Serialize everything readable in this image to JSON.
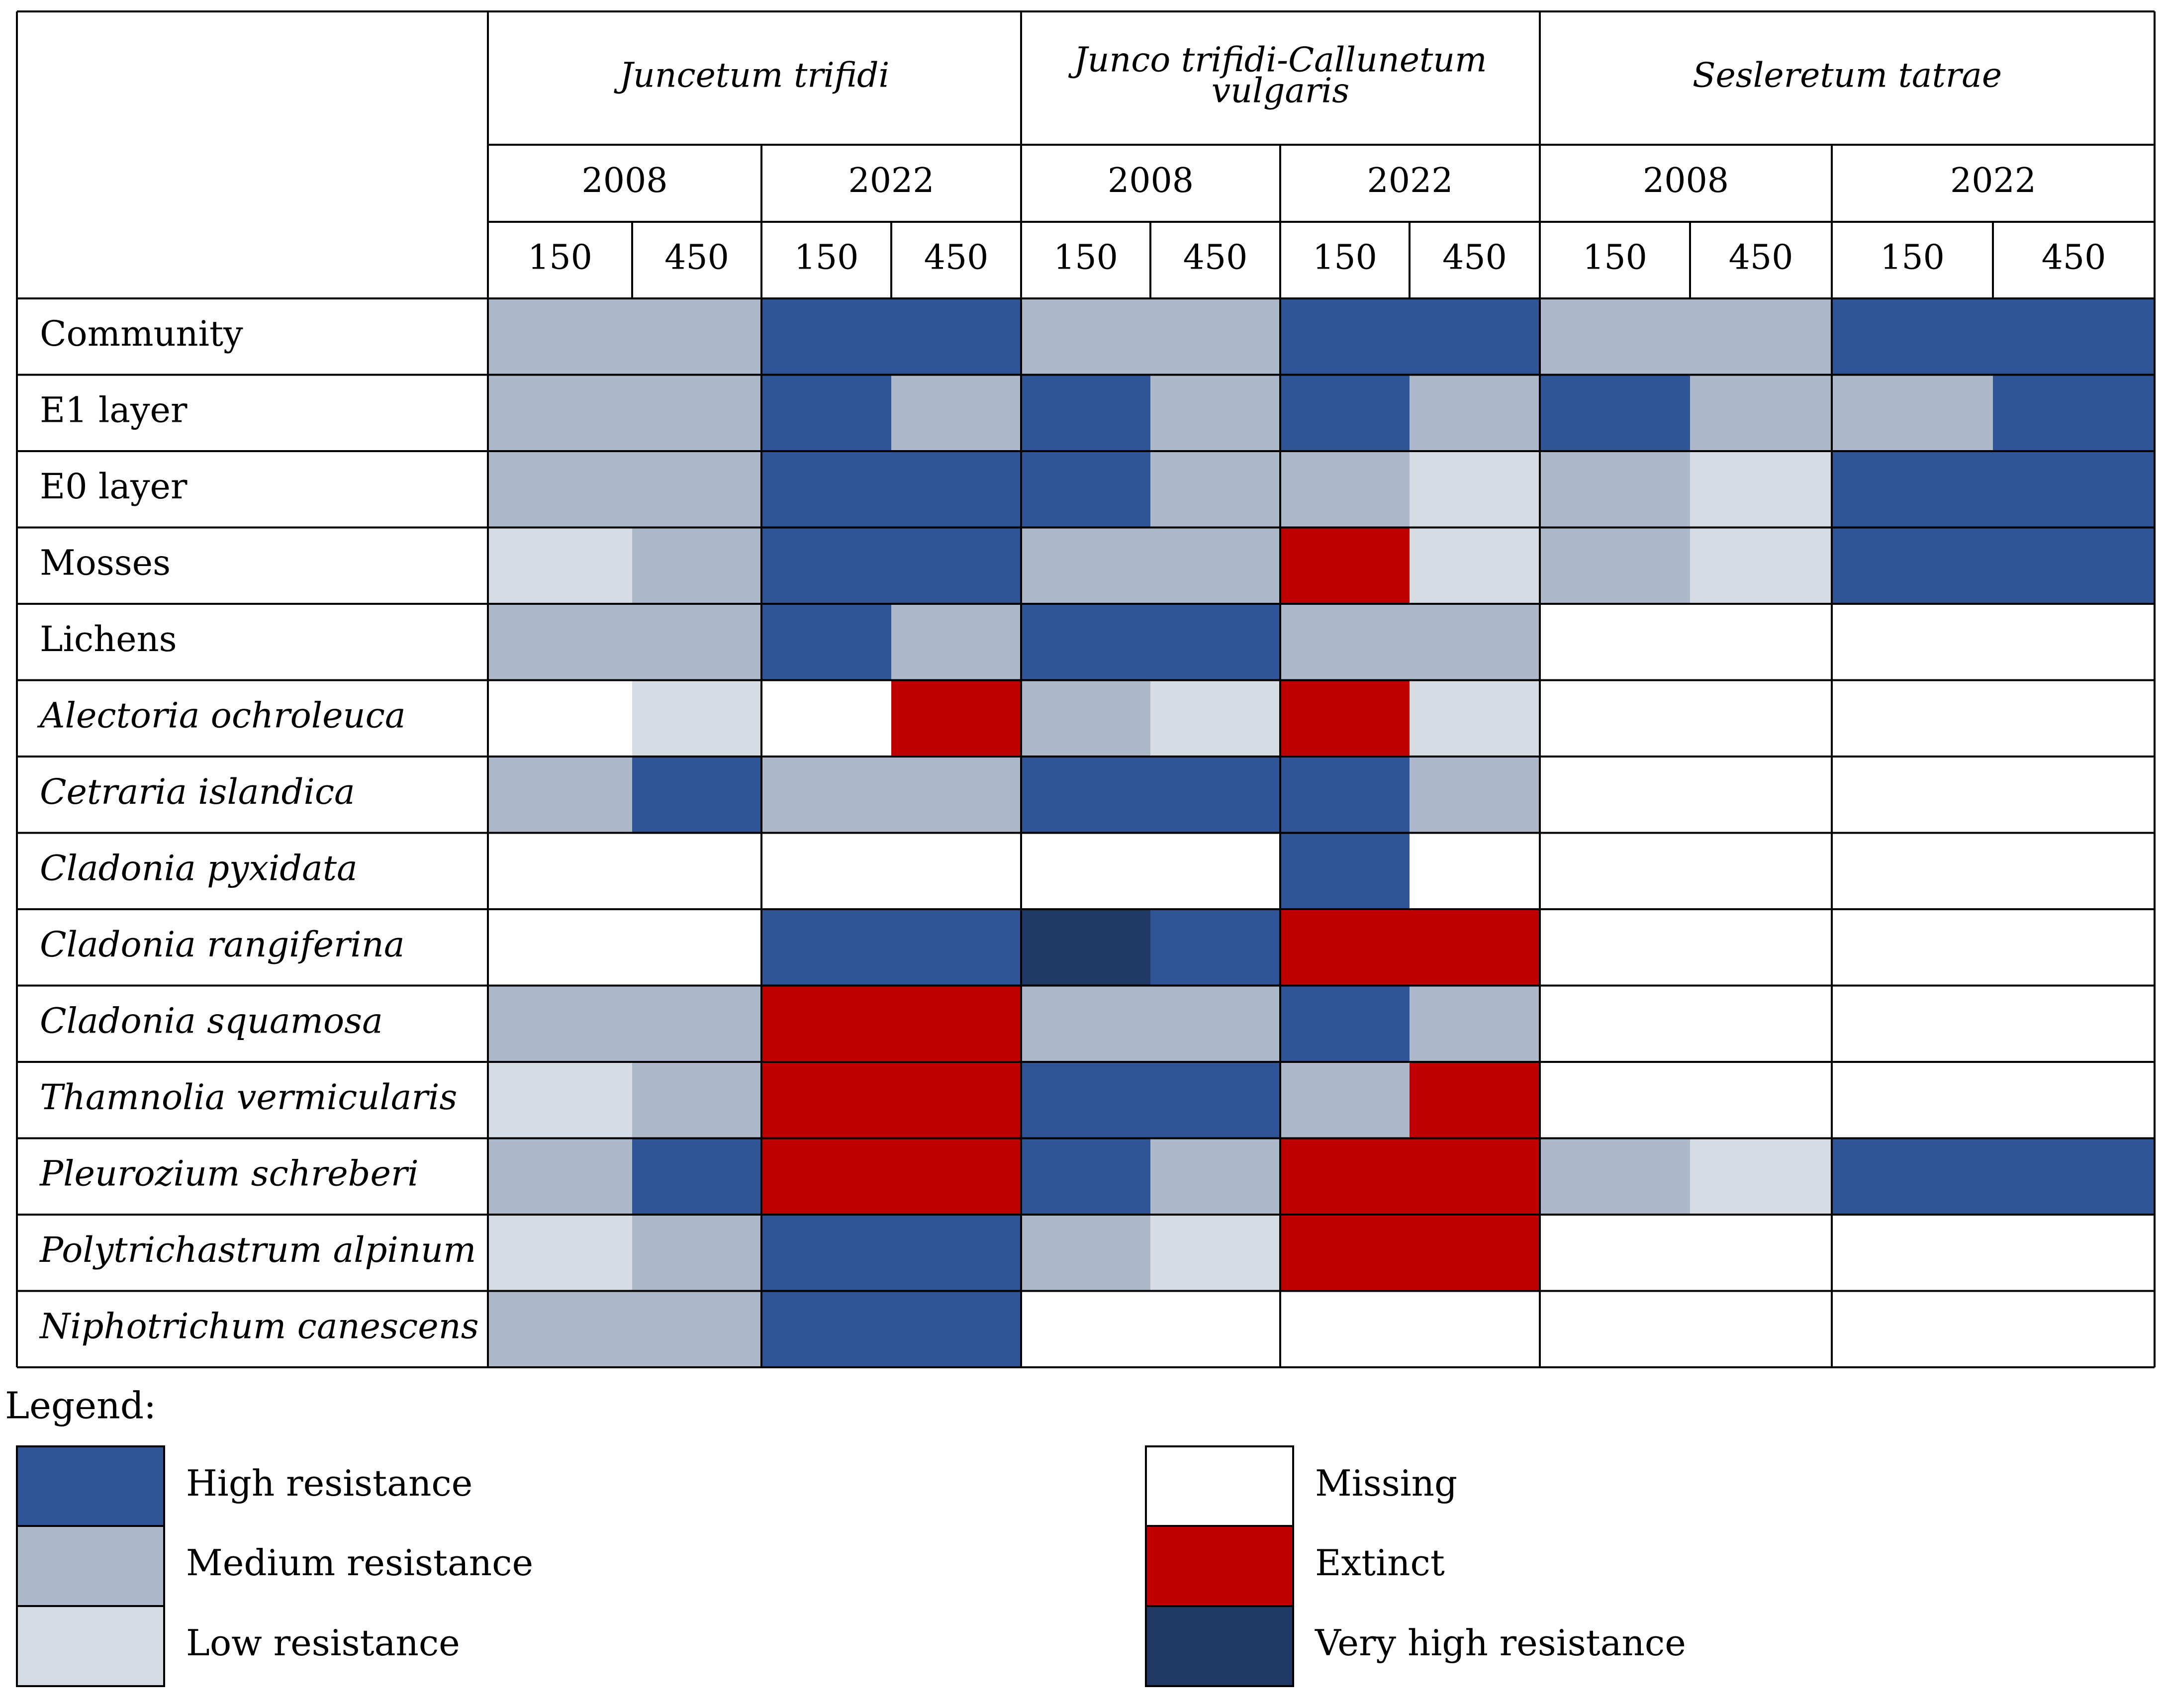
{
  "chart_data": {
    "type": "heatmap",
    "communities": [
      {
        "name": "Juncetum trifidi",
        "name_lines": [
          "Juncetum trifidi"
        ]
      },
      {
        "name": "Junco trifidi-Callunetum vulgaris",
        "name_lines": [
          "Junco trifidi-Callunetum",
          "vulgaris"
        ]
      },
      {
        "name": "Sesleretum tatrae",
        "name_lines": [
          "Sesleretum tatrae"
        ]
      }
    ],
    "years": [
      "2008",
      "2022"
    ],
    "doses": [
      "150",
      "450"
    ],
    "rows": [
      {
        "label": "Community",
        "italic": false,
        "values": [
          [
            "medium",
            "medium"
          ],
          [
            "high",
            "high"
          ],
          [
            "medium",
            "medium"
          ],
          [
            "high",
            "high"
          ],
          [
            "medium",
            "medium"
          ],
          [
            "high",
            "high"
          ]
        ]
      },
      {
        "label": "E1 layer",
        "italic": false,
        "values": [
          [
            "medium",
            "medium"
          ],
          [
            "high",
            "medium"
          ],
          [
            "high",
            "medium"
          ],
          [
            "high",
            "medium"
          ],
          [
            "high",
            "medium"
          ],
          [
            "medium",
            "high"
          ]
        ]
      },
      {
        "label": "E0 layer",
        "italic": false,
        "values": [
          [
            "medium",
            "medium"
          ],
          [
            "high",
            "high"
          ],
          [
            "high",
            "medium"
          ],
          [
            "medium",
            "low"
          ],
          [
            "medium",
            "low"
          ],
          [
            "high",
            "high"
          ]
        ]
      },
      {
        "label": "Mosses",
        "italic": false,
        "values": [
          [
            "low",
            "medium"
          ],
          [
            "high",
            "high"
          ],
          [
            "medium",
            "medium"
          ],
          [
            "extinct",
            "low"
          ],
          [
            "medium",
            "low"
          ],
          [
            "high",
            "high"
          ]
        ]
      },
      {
        "label": "Lichens",
        "italic": false,
        "values": [
          [
            "medium",
            "medium"
          ],
          [
            "high",
            "medium"
          ],
          [
            "high",
            "high"
          ],
          [
            "medium",
            "medium"
          ],
          [
            "missing",
            "missing"
          ],
          [
            "missing",
            "missing"
          ]
        ]
      },
      {
        "label": "Alectoria ochroleuca",
        "italic": true,
        "values": [
          [
            "missing",
            "low"
          ],
          [
            "missing",
            "extinct"
          ],
          [
            "medium",
            "low"
          ],
          [
            "extinct",
            "low"
          ],
          [
            "missing",
            "missing"
          ],
          [
            "missing",
            "missing"
          ]
        ]
      },
      {
        "label": "Cetraria islandica",
        "italic": true,
        "values": [
          [
            "medium",
            "high"
          ],
          [
            "medium",
            "medium"
          ],
          [
            "high",
            "high"
          ],
          [
            "high",
            "medium"
          ],
          [
            "missing",
            "missing"
          ],
          [
            "missing",
            "missing"
          ]
        ]
      },
      {
        "label": "Cladonia pyxidata",
        "italic": true,
        "values": [
          [
            "missing",
            "missing"
          ],
          [
            "missing",
            "missing"
          ],
          [
            "missing",
            "missing"
          ],
          [
            "high",
            "missing"
          ],
          [
            "missing",
            "missing"
          ],
          [
            "missing",
            "missing"
          ]
        ]
      },
      {
        "label": "Cladonia rangiferina",
        "italic": true,
        "values": [
          [
            "missing",
            "missing"
          ],
          [
            "high",
            "high"
          ],
          [
            "very_high",
            "high"
          ],
          [
            "extinct",
            "extinct"
          ],
          [
            "missing",
            "missing"
          ],
          [
            "missing",
            "missing"
          ]
        ]
      },
      {
        "label": "Cladonia squamosa",
        "italic": true,
        "values": [
          [
            "medium",
            "medium"
          ],
          [
            "extinct",
            "extinct"
          ],
          [
            "medium",
            "medium"
          ],
          [
            "high",
            "medium"
          ],
          [
            "missing",
            "missing"
          ],
          [
            "missing",
            "missing"
          ]
        ]
      },
      {
        "label": "Thamnolia vermicularis",
        "italic": true,
        "values": [
          [
            "low",
            "medium"
          ],
          [
            "extinct",
            "extinct"
          ],
          [
            "high",
            "high"
          ],
          [
            "medium",
            "extinct"
          ],
          [
            "missing",
            "missing"
          ],
          [
            "missing",
            "missing"
          ]
        ]
      },
      {
        "label": "Pleurozium schreberi",
        "italic": true,
        "values": [
          [
            "medium",
            "high"
          ],
          [
            "extinct",
            "extinct"
          ],
          [
            "high",
            "medium"
          ],
          [
            "extinct",
            "extinct"
          ],
          [
            "medium",
            "low"
          ],
          [
            "high",
            "high"
          ]
        ]
      },
      {
        "label": "Polytrichastrum alpinum",
        "italic": true,
        "values": [
          [
            "low",
            "medium"
          ],
          [
            "high",
            "high"
          ],
          [
            "medium",
            "low"
          ],
          [
            "extinct",
            "extinct"
          ],
          [
            "missing",
            "missing"
          ],
          [
            "missing",
            "missing"
          ]
        ]
      },
      {
        "label": "Niphotrichum canescens",
        "italic": true,
        "values": [
          [
            "medium",
            "medium"
          ],
          [
            "high",
            "high"
          ],
          [
            "missing",
            "missing"
          ],
          [
            "missing",
            "missing"
          ],
          [
            "missing",
            "missing"
          ],
          [
            "missing",
            "missing"
          ]
        ]
      }
    ],
    "legend_title": "Legend:",
    "legend": [
      {
        "key": "high",
        "label": "High resistance",
        "color": "#2F5597"
      },
      {
        "key": "medium",
        "label": "Medium resistance",
        "color": "#ADB9CA"
      },
      {
        "key": "low",
        "label": "Low resistance",
        "color": "#D6DCE4"
      },
      {
        "key": "missing",
        "label": "Missing",
        "color": "#FFFFFF"
      },
      {
        "key": "extinct",
        "label": "Extinct",
        "color": "#C00000"
      },
      {
        "key": "very_high",
        "label": "Very high resistance",
        "color": "#203864"
      }
    ]
  }
}
